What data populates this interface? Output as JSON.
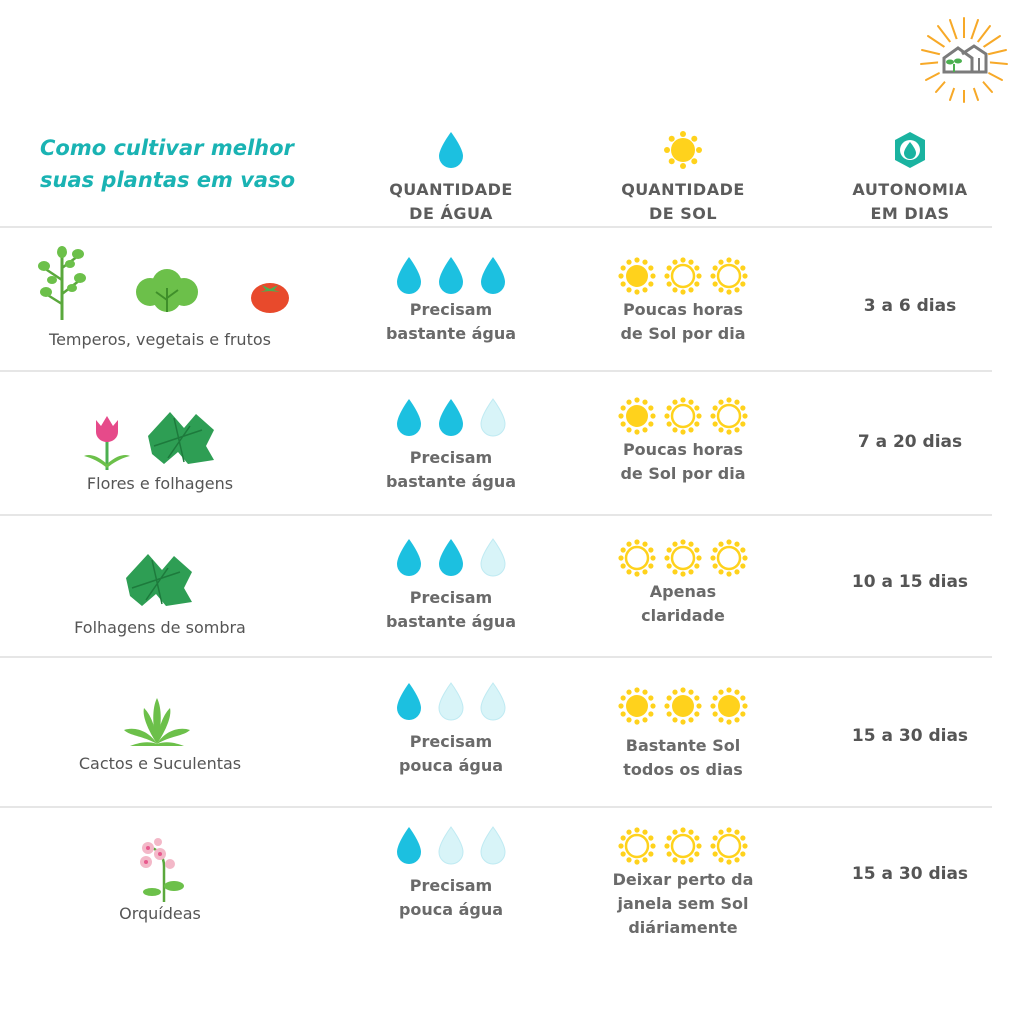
{
  "title": {
    "line1": "Como cultivar melhor",
    "line2": "suas plantas em vaso"
  },
  "headers": {
    "water": {
      "line1": "QUANTIDADE",
      "line2": "DE ÁGUA",
      "icon": "water-drop-icon"
    },
    "sun": {
      "line1": "QUANTIDADE",
      "line2": "DE SOL",
      "icon": "sun-icon"
    },
    "autonomy": {
      "line1": "AUTONOMIA",
      "line2": "EM DIAS",
      "icon": "autonomy-drop-icon"
    }
  },
  "colors": {
    "accent": "#1ab3b3",
    "water": "#1cc0e0",
    "water_light": "#d8f4f8",
    "sun": "#ffd21c",
    "divider": "#e6e6e6"
  },
  "rows": [
    {
      "plant": "Temperos, vegetais e frutos",
      "water_level": 3,
      "water_line1": "Precisam",
      "water_line2": "bastante água",
      "sun_level": 1,
      "sun_line1": "Poucas horas",
      "sun_line2": "de Sol por dia",
      "sun_line3": "",
      "days": "3 a 6 dias"
    },
    {
      "plant": "Flores e folhagens",
      "water_level": 2,
      "water_line1": "Precisam",
      "water_line2": "bastante água",
      "sun_level": 1,
      "sun_line1": "Poucas horas",
      "sun_line2": "de Sol por dia",
      "sun_line3": "",
      "days": "7 a 20 dias"
    },
    {
      "plant": "Folhagens de sombra",
      "water_level": 2,
      "water_line1": "Precisam",
      "water_line2": "bastante água",
      "sun_level": 0,
      "sun_line1": "Apenas",
      "sun_line2": "claridade",
      "sun_line3": "",
      "days": "10 a 15 dias"
    },
    {
      "plant": "Cactos e Suculentas",
      "water_level": 1,
      "water_line1": "Precisam",
      "water_line2": "pouca água",
      "sun_level": 3,
      "sun_line1": "Bastante Sol",
      "sun_line2": "todos os dias",
      "sun_line3": "",
      "days": "15 a 30 dias"
    },
    {
      "plant": "Orquídeas",
      "water_level": 1,
      "water_line1": "Precisam",
      "water_line2": "pouca água",
      "sun_level": 0,
      "sun_line1": "Deixar perto da",
      "sun_line2": "janela sem Sol",
      "sun_line3": "diáriamente",
      "days": "15 a 30 dias"
    }
  ]
}
